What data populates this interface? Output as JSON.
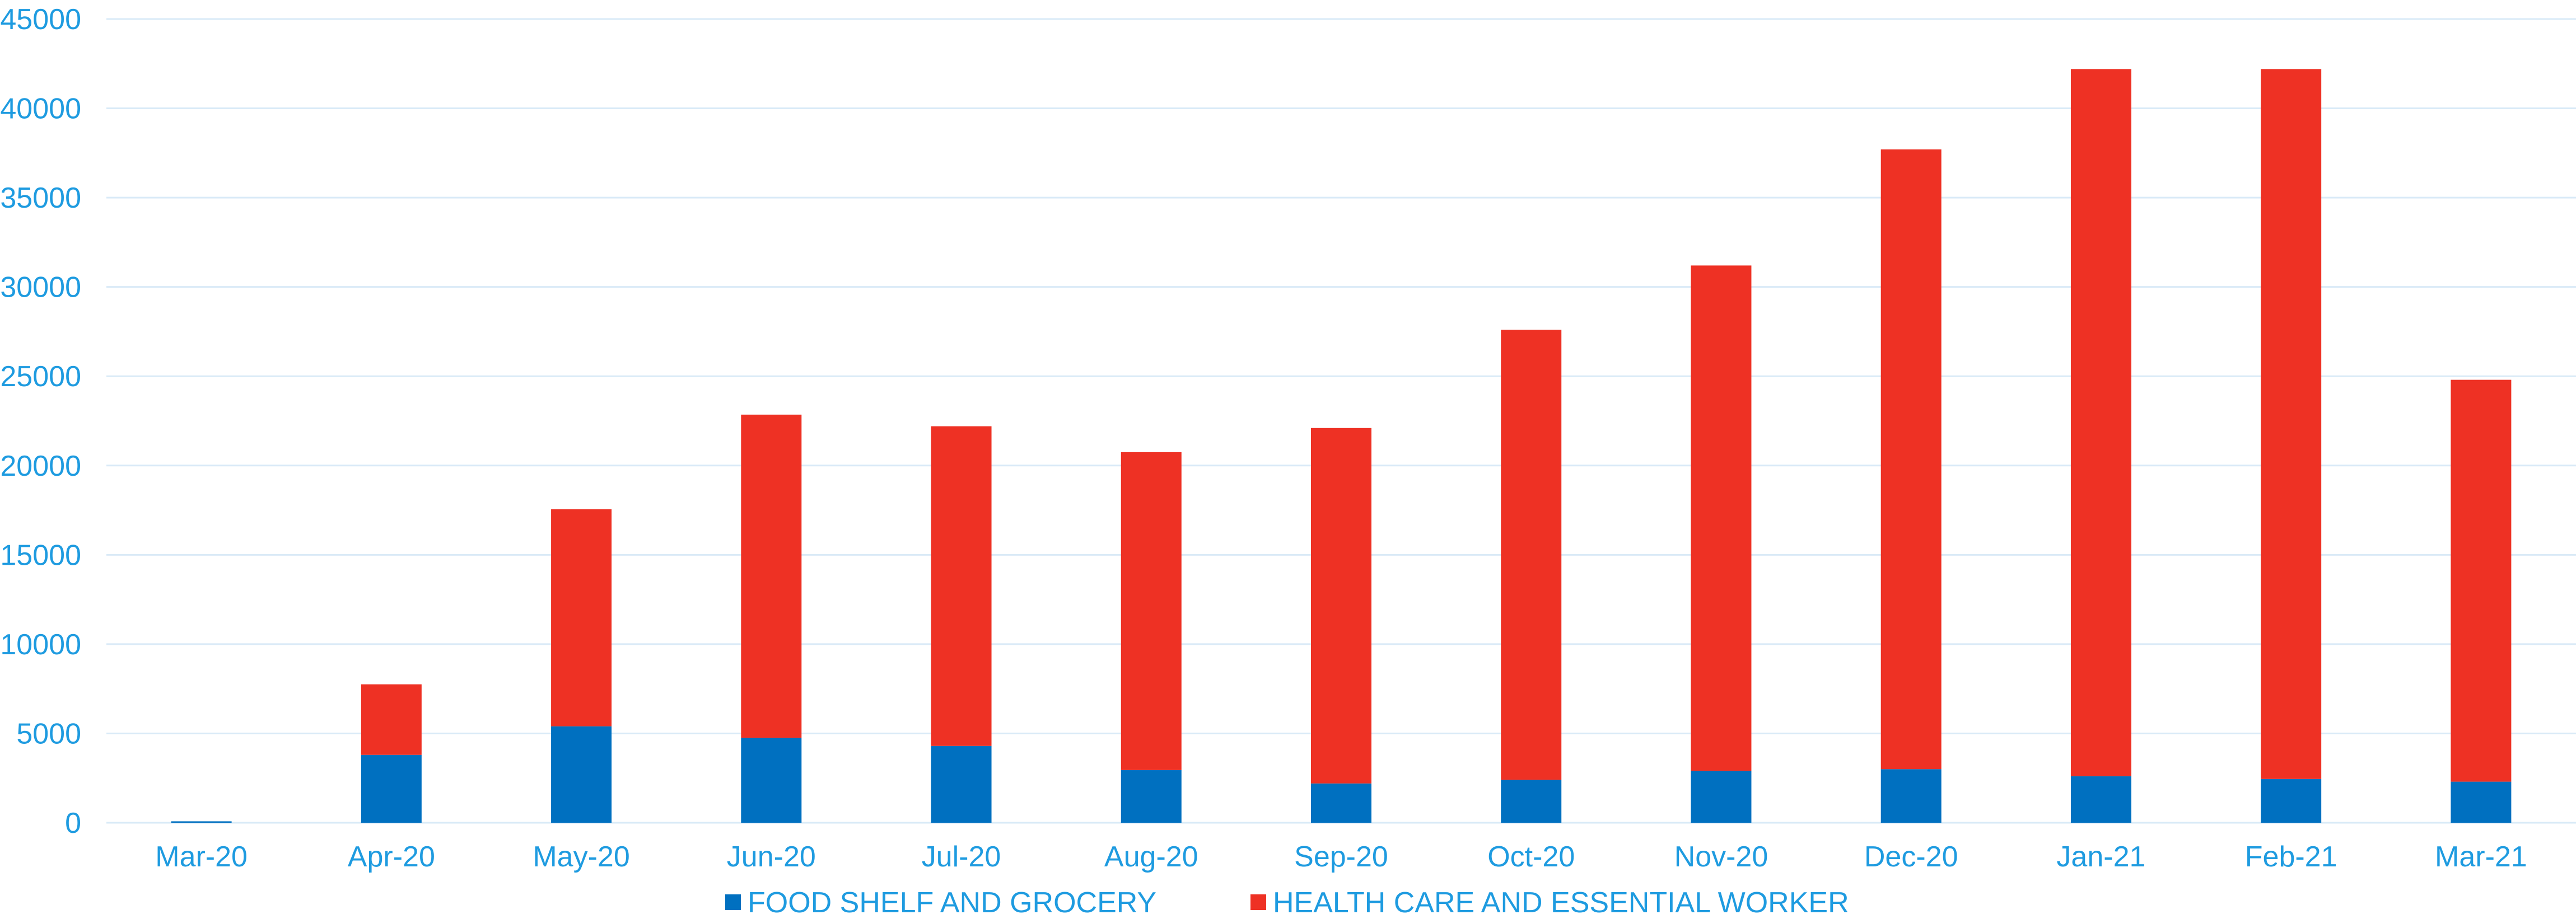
{
  "chart_data": {
    "type": "bar",
    "stacked": true,
    "title": "",
    "xlabel": "",
    "ylabel": "",
    "ylim": [
      0,
      45000
    ],
    "yticks": [
      0,
      5000,
      10000,
      15000,
      20000,
      25000,
      30000,
      35000,
      40000,
      45000
    ],
    "grid": true,
    "legend_position": "bottom",
    "categories": [
      "Mar-20",
      "Apr-20",
      "May-20",
      "Jun-20",
      "Jul-20",
      "Aug-20",
      "Sep-20",
      "Oct-20",
      "Nov-20",
      "Dec-20",
      "Jan-21",
      "Feb-21",
      "Mar-21"
    ],
    "series": [
      {
        "name": "FOOD SHELF AND GROCERY",
        "color": "#0070C0",
        "values": [
          80,
          3800,
          5400,
          4750,
          4300,
          2950,
          2200,
          2400,
          2900,
          3000,
          2600,
          2450,
          2300
        ]
      },
      {
        "name": "HEALTH CARE AND ESSENTIAL WORKER",
        "color": "#EE3124",
        "values": [
          0,
          3950,
          12150,
          18100,
          17900,
          17800,
          19900,
          25200,
          28300,
          34700,
          39600,
          39750,
          22500
        ]
      }
    ],
    "colors": {
      "axis_text": "#1E9BE0",
      "gridline": "#D9EAF7"
    }
  }
}
